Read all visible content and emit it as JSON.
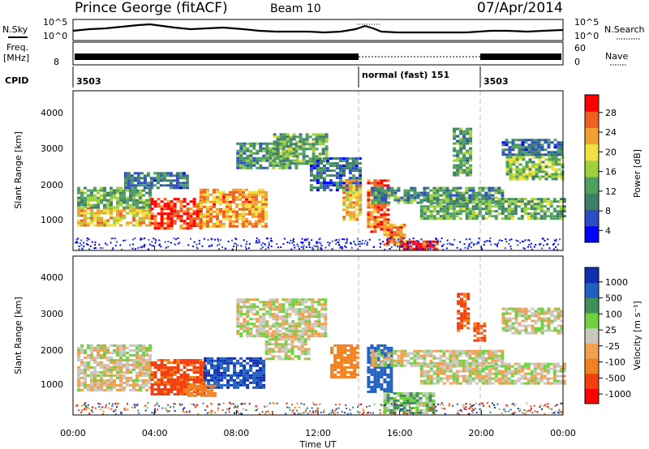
{
  "header": {
    "station": "Prince George (fitACF)",
    "beam": "Beam 10",
    "date": "07/Apr/2014"
  },
  "top_panels": {
    "nsky_label": "N.Sky",
    "nsky_ticks": [
      "10^5",
      "10^0"
    ],
    "nsearch_label": "N.Search",
    "nsearch_ticks": [
      "10^5",
      "10^0"
    ],
    "freq_label": "Freq.",
    "freq_unit": "[MHz]",
    "freq_ticks": [
      "8"
    ],
    "nave_label": "Nave",
    "nave_ticks": [
      "60",
      "0"
    ],
    "cpid_label": "CPID",
    "cpid_segments": [
      {
        "label": "3503",
        "start_hour": 0,
        "end_hour": 14
      },
      {
        "label": "normal (fast) 151",
        "start_hour": 14,
        "end_hour": 20
      },
      {
        "label": "3503",
        "start_hour": 20,
        "end_hour": 24
      }
    ]
  },
  "colors": {
    "power_scale": [
      "#0000ff",
      "#2c4ec4",
      "#3f7f6a",
      "#4fa060",
      "#9fd03f",
      "#f0e040",
      "#f0a030",
      "#f06020",
      "#ff0000"
    ],
    "velocity_scale": [
      "#1030b0",
      "#2060c0",
      "#3f8f5a",
      "#70d040",
      "#c8c8c0",
      "#f0a050",
      "#f08020",
      "#f04010",
      "#ff0000"
    ]
  },
  "chart_data": [
    {
      "type": "heatmap",
      "panel": "power",
      "ylabel": "Slant Range [km]",
      "xlim_hours": [
        0,
        24
      ],
      "ylim": [
        180,
        4500
      ],
      "yticks": [
        1000,
        2000,
        3000,
        4000
      ],
      "colorbar_label": "Power [dB]",
      "colorbar_ticks": [
        "28",
        "24",
        "20",
        "16",
        "12",
        "8",
        "4"
      ],
      "colorbar_range": [
        0,
        30
      ],
      "bands": [
        {
          "x": [
            0.2,
            3.8
          ],
          "y": [
            850,
            1350
          ],
          "value": 20
        },
        {
          "x": [
            0.2,
            3.8
          ],
          "y": [
            1350,
            1900
          ],
          "value": 12
        },
        {
          "x": [
            3.8,
            6.2
          ],
          "y": [
            750,
            1600
          ],
          "value": 27
        },
        {
          "x": [
            6.2,
            9.4
          ],
          "y": [
            800,
            1850
          ],
          "value": 22
        },
        {
          "x": [
            2.5,
            5.6
          ],
          "y": [
            1900,
            2300
          ],
          "value": 8
        },
        {
          "x": [
            8.0,
            11.0
          ],
          "y": [
            2400,
            3100
          ],
          "value": 10
        },
        {
          "x": [
            9.8,
            12.4
          ],
          "y": [
            2500,
            3350
          ],
          "value": 12
        },
        {
          "x": [
            11.6,
            14.0
          ],
          "y": [
            1800,
            2700
          ],
          "value": 7
        },
        {
          "x": [
            13.2,
            14.0
          ],
          "y": [
            1000,
            2100
          ],
          "value": 20
        },
        {
          "x": [
            14.4,
            15.4
          ],
          "y": [
            700,
            2100
          ],
          "value": 24
        },
        {
          "x": [
            15.2,
            16.2
          ],
          "y": [
            350,
            900
          ],
          "value": 22
        },
        {
          "x": [
            16.0,
            17.8
          ],
          "y": [
            220,
            450
          ],
          "value": 28
        },
        {
          "x": [
            14.6,
            21.0
          ],
          "y": [
            1500,
            1900
          ],
          "value": 10
        },
        {
          "x": [
            17.0,
            24.0
          ],
          "y": [
            1050,
            1600
          ],
          "value": 12
        },
        {
          "x": [
            18.6,
            19.4
          ],
          "y": [
            2200,
            3500
          ],
          "value": 11
        },
        {
          "x": [
            21.2,
            24.0
          ],
          "y": [
            2100,
            2800
          ],
          "value": 14
        },
        {
          "x": [
            21.0,
            24.0
          ],
          "y": [
            2800,
            3200
          ],
          "value": 8
        }
      ]
    },
    {
      "type": "heatmap",
      "panel": "velocity",
      "ylabel": "Slant Range [km]",
      "xlabel": "Time UT",
      "xlim_hours": [
        0,
        24
      ],
      "xticks": [
        "00:00",
        "04:00",
        "08:00",
        "12:00",
        "16:00",
        "20:00",
        "00:00"
      ],
      "ylim": [
        180,
        4500
      ],
      "yticks": [
        1000,
        2000,
        3000,
        4000
      ],
      "colorbar_label": "Velocity [m s⁻¹]",
      "colorbar_ticks": [
        "1000",
        "500",
        "100",
        "25",
        "-25",
        "-100",
        "-500",
        "-1000"
      ],
      "bands": [
        {
          "x": [
            0.2,
            3.8
          ],
          "y": [
            850,
            1350
          ],
          "value": -25
        },
        {
          "x": [
            0.2,
            3.8
          ],
          "y": [
            1350,
            2100
          ],
          "value": 0
        },
        {
          "x": [
            3.8,
            6.4
          ],
          "y": [
            750,
            1700
          ],
          "value": -500
        },
        {
          "x": [
            6.4,
            9.4
          ],
          "y": [
            950,
            1750
          ],
          "value": 700
        },
        {
          "x": [
            5.6,
            7.0
          ],
          "y": [
            700,
            1000
          ],
          "value": -300
        },
        {
          "x": [
            8.0,
            12.4
          ],
          "y": [
            2300,
            3350
          ],
          "value": 0
        },
        {
          "x": [
            9.4,
            11.6
          ],
          "y": [
            1700,
            2400
          ],
          "value": 0
        },
        {
          "x": [
            12.6,
            14.0
          ],
          "y": [
            1200,
            2100
          ],
          "value": -300
        },
        {
          "x": [
            14.4,
            15.6
          ],
          "y": [
            800,
            2100
          ],
          "value": 500
        },
        {
          "x": [
            15.2,
            17.6
          ],
          "y": [
            220,
            800
          ],
          "value": 80
        },
        {
          "x": [
            14.6,
            21.0
          ],
          "y": [
            1550,
            1950
          ],
          "value": 0
        },
        {
          "x": [
            17.0,
            24.0
          ],
          "y": [
            1050,
            1600
          ],
          "value": 0
        },
        {
          "x": [
            18.8,
            19.4
          ],
          "y": [
            2500,
            3500
          ],
          "value": -500
        },
        {
          "x": [
            19.6,
            20.2
          ],
          "y": [
            2200,
            2700
          ],
          "value": -500
        },
        {
          "x": [
            21.0,
            24.0
          ],
          "y": [
            2400,
            3100
          ],
          "value": 0
        }
      ]
    }
  ]
}
